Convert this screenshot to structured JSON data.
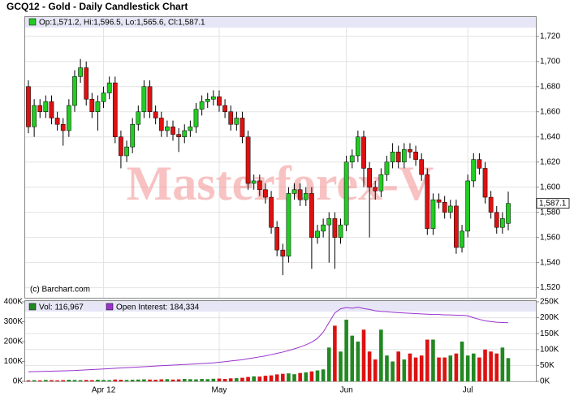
{
  "chart_data": [
    {
      "type": "candlestick",
      "title": "GCQ12 - Gold - Daily Candlestick Chart",
      "legend": "Op:1,571.2, Hi:1,596.5, Lo:1,565.6, Cl:1,587.1",
      "watermark": "Masterforex-V",
      "credit": "(c) Barchart.com",
      "up_color": "#22cc22",
      "down_color": "#dd1111",
      "categories": [
        null,
        null,
        null,
        null,
        null,
        null,
        null,
        null,
        null,
        null,
        null,
        null,
        null,
        "Apr 12",
        null,
        null,
        null,
        null,
        null,
        null,
        null,
        null,
        null,
        null,
        null,
        null,
        null,
        null,
        null,
        null,
        null,
        null,
        null,
        "May",
        null,
        null,
        null,
        null,
        null,
        null,
        null,
        null,
        null,
        null,
        null,
        null,
        null,
        null,
        null,
        null,
        null,
        null,
        null,
        null,
        null,
        "Jun",
        null,
        null,
        null,
        null,
        null,
        null,
        null,
        null,
        null,
        null,
        null,
        null,
        null,
        null,
        null,
        null,
        null,
        null,
        null,
        null,
        "Jul",
        null,
        null,
        null,
        null,
        null,
        null,
        null
      ],
      "open": [
        1680,
        1648,
        1665,
        1660,
        1668,
        1655,
        1650,
        1645,
        1665,
        1688,
        1695,
        1670,
        1660,
        1668,
        1675,
        1683,
        1640,
        1625,
        1632,
        1650,
        1660,
        1680,
        1660,
        1655,
        1645,
        1648,
        1642,
        1640,
        1645,
        1648,
        1662,
        1668,
        1670,
        1672,
        1665,
        1660,
        1650,
        1655,
        1640,
        1603,
        1605,
        1598,
        1592,
        1568,
        1550,
        1545,
        1595,
        1598,
        1590,
        1595,
        1560,
        1565,
        1570,
        1575,
        1560,
        1570,
        1620,
        1625,
        1640,
        1615,
        1600,
        1597,
        1610,
        1620,
        1628,
        1620,
        1630,
        1628,
        1622,
        1610,
        1567,
        1590,
        1588,
        1580,
        1585,
        1552,
        1565,
        1605,
        1622,
        1615,
        1592,
        1580,
        1568,
        1571.2
      ],
      "high": [
        1685,
        1670,
        1670,
        1673,
        1673,
        1660,
        1655,
        1670,
        1693,
        1702,
        1700,
        1675,
        1673,
        1680,
        1688,
        1688,
        1645,
        1637,
        1655,
        1665,
        1685,
        1685,
        1665,
        1660,
        1653,
        1653,
        1647,
        1650,
        1653,
        1667,
        1673,
        1675,
        1677,
        1677,
        1670,
        1665,
        1660,
        1660,
        1645,
        1610,
        1610,
        1603,
        1597,
        1573,
        1555,
        1600,
        1603,
        1603,
        1600,
        1600,
        1570,
        1575,
        1580,
        1580,
        1575,
        1625,
        1630,
        1645,
        1645,
        1620,
        1605,
        1615,
        1625,
        1635,
        1633,
        1635,
        1635,
        1633,
        1627,
        1615,
        1595,
        1595,
        1593,
        1590,
        1590,
        1570,
        1610,
        1627,
        1627,
        1620,
        1597,
        1585,
        1580,
        1596.5
      ],
      "low": [
        1643,
        1640,
        1655,
        1655,
        1650,
        1645,
        1633,
        1640,
        1660,
        1683,
        1665,
        1655,
        1645,
        1663,
        1670,
        1635,
        1615,
        1620,
        1627,
        1645,
        1655,
        1655,
        1650,
        1640,
        1640,
        1637,
        1628,
        1635,
        1640,
        1643,
        1657,
        1663,
        1665,
        1660,
        1655,
        1645,
        1645,
        1635,
        1598,
        1598,
        1593,
        1587,
        1563,
        1545,
        1530,
        1540,
        1590,
        1585,
        1585,
        1535,
        1555,
        1560,
        1540,
        1535,
        1555,
        1565,
        1615,
        1620,
        1600,
        1560,
        1590,
        1592,
        1605,
        1615,
        1615,
        1615,
        1623,
        1617,
        1605,
        1562,
        1562,
        1583,
        1575,
        1575,
        1547,
        1548,
        1560,
        1600,
        1610,
        1587,
        1575,
        1563,
        1563,
        1565.6
      ],
      "close": [
        1648,
        1665,
        1660,
        1668,
        1655,
        1650,
        1645,
        1665,
        1688,
        1695,
        1670,
        1660,
        1668,
        1675,
        1683,
        1640,
        1625,
        1632,
        1650,
        1660,
        1680,
        1660,
        1655,
        1645,
        1648,
        1642,
        1640,
        1645,
        1648,
        1662,
        1668,
        1670,
        1672,
        1665,
        1660,
        1650,
        1655,
        1640,
        1603,
        1605,
        1598,
        1592,
        1568,
        1550,
        1545,
        1595,
        1598,
        1590,
        1595,
        1560,
        1565,
        1570,
        1575,
        1560,
        1570,
        1620,
        1625,
        1640,
        1615,
        1600,
        1597,
        1610,
        1620,
        1628,
        1620,
        1630,
        1628,
        1622,
        1610,
        1567,
        1590,
        1588,
        1580,
        1585,
        1552,
        1565,
        1605,
        1622,
        1615,
        1592,
        1580,
        1568,
        1575,
        1587.1
      ],
      "last_label": {
        "value": 1587.1,
        "label": "1,587.1"
      },
      "ylim": [
        1512,
        1736
      ],
      "yticks": [
        {
          "value": 1520,
          "label": "1,520"
        },
        {
          "value": 1540,
          "label": "1,540"
        },
        {
          "value": 1560,
          "label": "1,560"
        },
        {
          "value": 1580,
          "label": "1,580"
        },
        {
          "value": 1600,
          "label": "1,600"
        },
        {
          "value": 1620,
          "label": "1,620"
        },
        {
          "value": 1640,
          "label": "1,640"
        },
        {
          "value": 1660,
          "label": "1,660"
        },
        {
          "value": 1680,
          "label": "1,680"
        },
        {
          "value": 1700,
          "label": "1,700"
        },
        {
          "value": 1720,
          "label": "1,720"
        }
      ],
      "grid": true
    },
    {
      "type": "bar",
      "series": [
        {
          "name": "Vol: 116,967",
          "color": "#228822",
          "values": [
            5000,
            6000,
            5000,
            7000,
            6000,
            5000,
            6000,
            8000,
            7000,
            6000,
            7000,
            6000,
            8000,
            7000,
            6000,
            9000,
            8000,
            7000,
            8000,
            9000,
            10000,
            9000,
            8000,
            10000,
            11000,
            9000,
            10000,
            12000,
            11000,
            10000,
            12000,
            11000,
            13000,
            14000,
            12000,
            15000,
            16000,
            18000,
            22000,
            25000,
            24000,
            28000,
            30000,
            35000,
            38000,
            40000,
            36000,
            42000,
            45000,
            50000,
            55000,
            60000,
            170000,
            280000,
            150000,
            310000,
            230000,
            200000,
            260000,
            150000,
            110000,
            260000,
            130000,
            100000,
            150000,
            110000,
            140000,
            120000,
            130000,
            210000,
            210000,
            120000,
            120000,
            130000,
            140000,
            200000,
            130000,
            140000,
            120000,
            160000,
            150000,
            140000,
            170000,
            116967
          ]
        },
        {
          "name": "Open Interest: 184,334",
          "color": "#9933cc",
          "type": "line",
          "axis": "y2",
          "values": [
            30000,
            30500,
            31000,
            31500,
            32000,
            32500,
            33000,
            33500,
            34000,
            35000,
            36000,
            37000,
            38000,
            39000,
            40000,
            41000,
            42000,
            43000,
            44000,
            45000,
            46000,
            47000,
            48000,
            49000,
            50000,
            51000,
            52000,
            53000,
            54000,
            55000,
            56000,
            57000,
            58000,
            60000,
            62000,
            64000,
            66000,
            68000,
            71000,
            74000,
            77000,
            80000,
            84000,
            88000,
            92000,
            97000,
            102000,
            108000,
            115000,
            123000,
            135000,
            155000,
            185000,
            215000,
            228000,
            232000,
            230000,
            233000,
            229000,
            226000,
            222000,
            220000,
            219000,
            217000,
            216000,
            215000,
            214000,
            213000,
            212000,
            211000,
            210000,
            210000,
            209000,
            209000,
            208000,
            208000,
            206000,
            200000,
            195000,
            190000,
            188000,
            186000,
            185000,
            184334
          ]
        }
      ],
      "ylim": [
        0,
        400000
      ],
      "yticks": [
        {
          "value": 0,
          "label": "0K"
        },
        {
          "value": 100000,
          "label": "100K"
        },
        {
          "value": 200000,
          "label": "200K"
        },
        {
          "value": 300000,
          "label": "300K"
        },
        {
          "value": 400000,
          "label": "400K"
        }
      ],
      "y2lim": [
        0,
        250000
      ],
      "y2ticks": [
        {
          "value": 0,
          "label": "0K"
        },
        {
          "value": 50000,
          "label": "50K"
        },
        {
          "value": 100000,
          "label": "100K"
        },
        {
          "value": 150000,
          "label": "150K"
        },
        {
          "value": 200000,
          "label": "200K"
        },
        {
          "value": 250000,
          "label": "250K"
        }
      ],
      "grid": true
    }
  ]
}
